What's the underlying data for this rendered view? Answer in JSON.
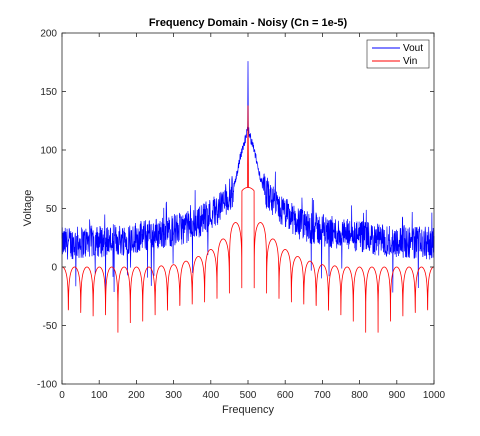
{
  "chart_data": {
    "type": "line",
    "title": "Frequency Domain - Noisy (Cn = 1e-5)",
    "xlabel": "Frequency",
    "ylabel": "Voltage",
    "xlim": [
      0,
      1000
    ],
    "ylim": [
      -100,
      200
    ],
    "xticks": [
      0,
      100,
      200,
      300,
      400,
      500,
      600,
      700,
      800,
      900,
      1000
    ],
    "yticks": [
      -100,
      -50,
      0,
      50,
      100,
      150,
      200
    ],
    "grid": false,
    "legend": {
      "position": "top-right",
      "entries": [
        "Vout",
        "Vin"
      ]
    },
    "series": [
      {
        "name": "Vout",
        "color": "#0000ff",
        "description_points": {
          "baseline": 20,
          "noise_band": [
            0,
            50
          ],
          "envelope": [
            [
              0,
              20
            ],
            [
              150,
              23
            ],
            [
              250,
              28
            ],
            [
              350,
              35
            ],
            [
              420,
              50
            ],
            [
              460,
              65
            ],
            [
              480,
              95
            ],
            [
              500,
              118
            ],
            [
              520,
              95
            ],
            [
              540,
              68
            ],
            [
              580,
              50
            ],
            [
              650,
              35
            ],
            [
              750,
              28
            ],
            [
              850,
              23
            ],
            [
              1000,
              20
            ]
          ],
          "peak": [
            500,
            176
          ]
        }
      },
      {
        "name": "Vin",
        "color": "#ff0000",
        "lobe_spacing": 33.3,
        "null_depth_range": [
          -85,
          -40
        ],
        "center_peak": [
          500,
          138
        ],
        "main_lobe": 68,
        "side_lobes": [
          [
            467,
            38
          ],
          [
            434,
            24
          ],
          [
            401,
            15
          ],
          [
            368,
            9
          ],
          [
            335,
            5
          ],
          [
            302,
            2
          ],
          [
            269,
            1
          ],
          [
            236,
            0
          ],
          [
            203,
            0
          ]
        ]
      }
    ]
  }
}
